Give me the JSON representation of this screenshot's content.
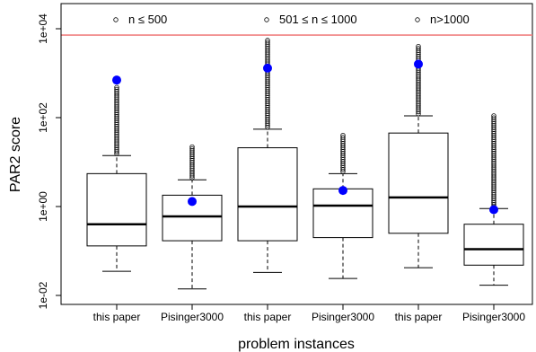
{
  "chart_data": {
    "type": "boxplot",
    "title": "",
    "xlabel": "problem instances",
    "ylabel": "PAR2 score",
    "yscale": "log",
    "ylim": [
      0.01,
      10000
    ],
    "yticks": [
      {
        "value": 0.01,
        "label": "1e-02"
      },
      {
        "value": 1,
        "label": "1e+00"
      },
      {
        "value": 100,
        "label": "1e+02"
      },
      {
        "value": 10000,
        "label": "1e+04"
      }
    ],
    "threshold_line": {
      "value": 7200,
      "color": "#f08080"
    },
    "groups": [
      {
        "label": "n ≤ 500"
      },
      {
        "label": "501 ≤ n ≤ 1000"
      },
      {
        "label": "n>1000"
      }
    ],
    "categories": [
      "this paper",
      "Pisinger3000",
      "this paper",
      "Pisinger3000",
      "this paper",
      "Pisinger3000"
    ],
    "boxes": [
      {
        "whisker_low": 0.035,
        "q1": 0.13,
        "median": 0.4,
        "q3": 5.5,
        "whisker_high": 14,
        "outlier_max": 480,
        "mean": 700
      },
      {
        "whisker_low": 0.014,
        "q1": 0.17,
        "median": 0.6,
        "q3": 1.8,
        "whisker_high": 4,
        "outlier_max": 22,
        "mean": 1.3
      },
      {
        "whisker_low": 0.033,
        "q1": 0.17,
        "median": 1.0,
        "q3": 21,
        "whisker_high": 55,
        "outlier_max": 5500,
        "mean": 1300
      },
      {
        "whisker_low": 0.024,
        "q1": 0.2,
        "median": 1.05,
        "q3": 2.5,
        "whisker_high": 5.5,
        "outlier_max": 40,
        "mean": 2.3
      },
      {
        "whisker_low": 0.042,
        "q1": 0.25,
        "median": 1.6,
        "q3": 45,
        "whisker_high": 110,
        "outlier_max": 4000,
        "mean": 1600
      },
      {
        "whisker_low": 0.017,
        "q1": 0.048,
        "median": 0.11,
        "q3": 0.4,
        "whisker_high": 0.9,
        "outlier_max": 110,
        "mean": 0.85
      }
    ],
    "colors": {
      "box": "#000000",
      "mean": "#0000ff",
      "threshold": "#f08080"
    }
  }
}
